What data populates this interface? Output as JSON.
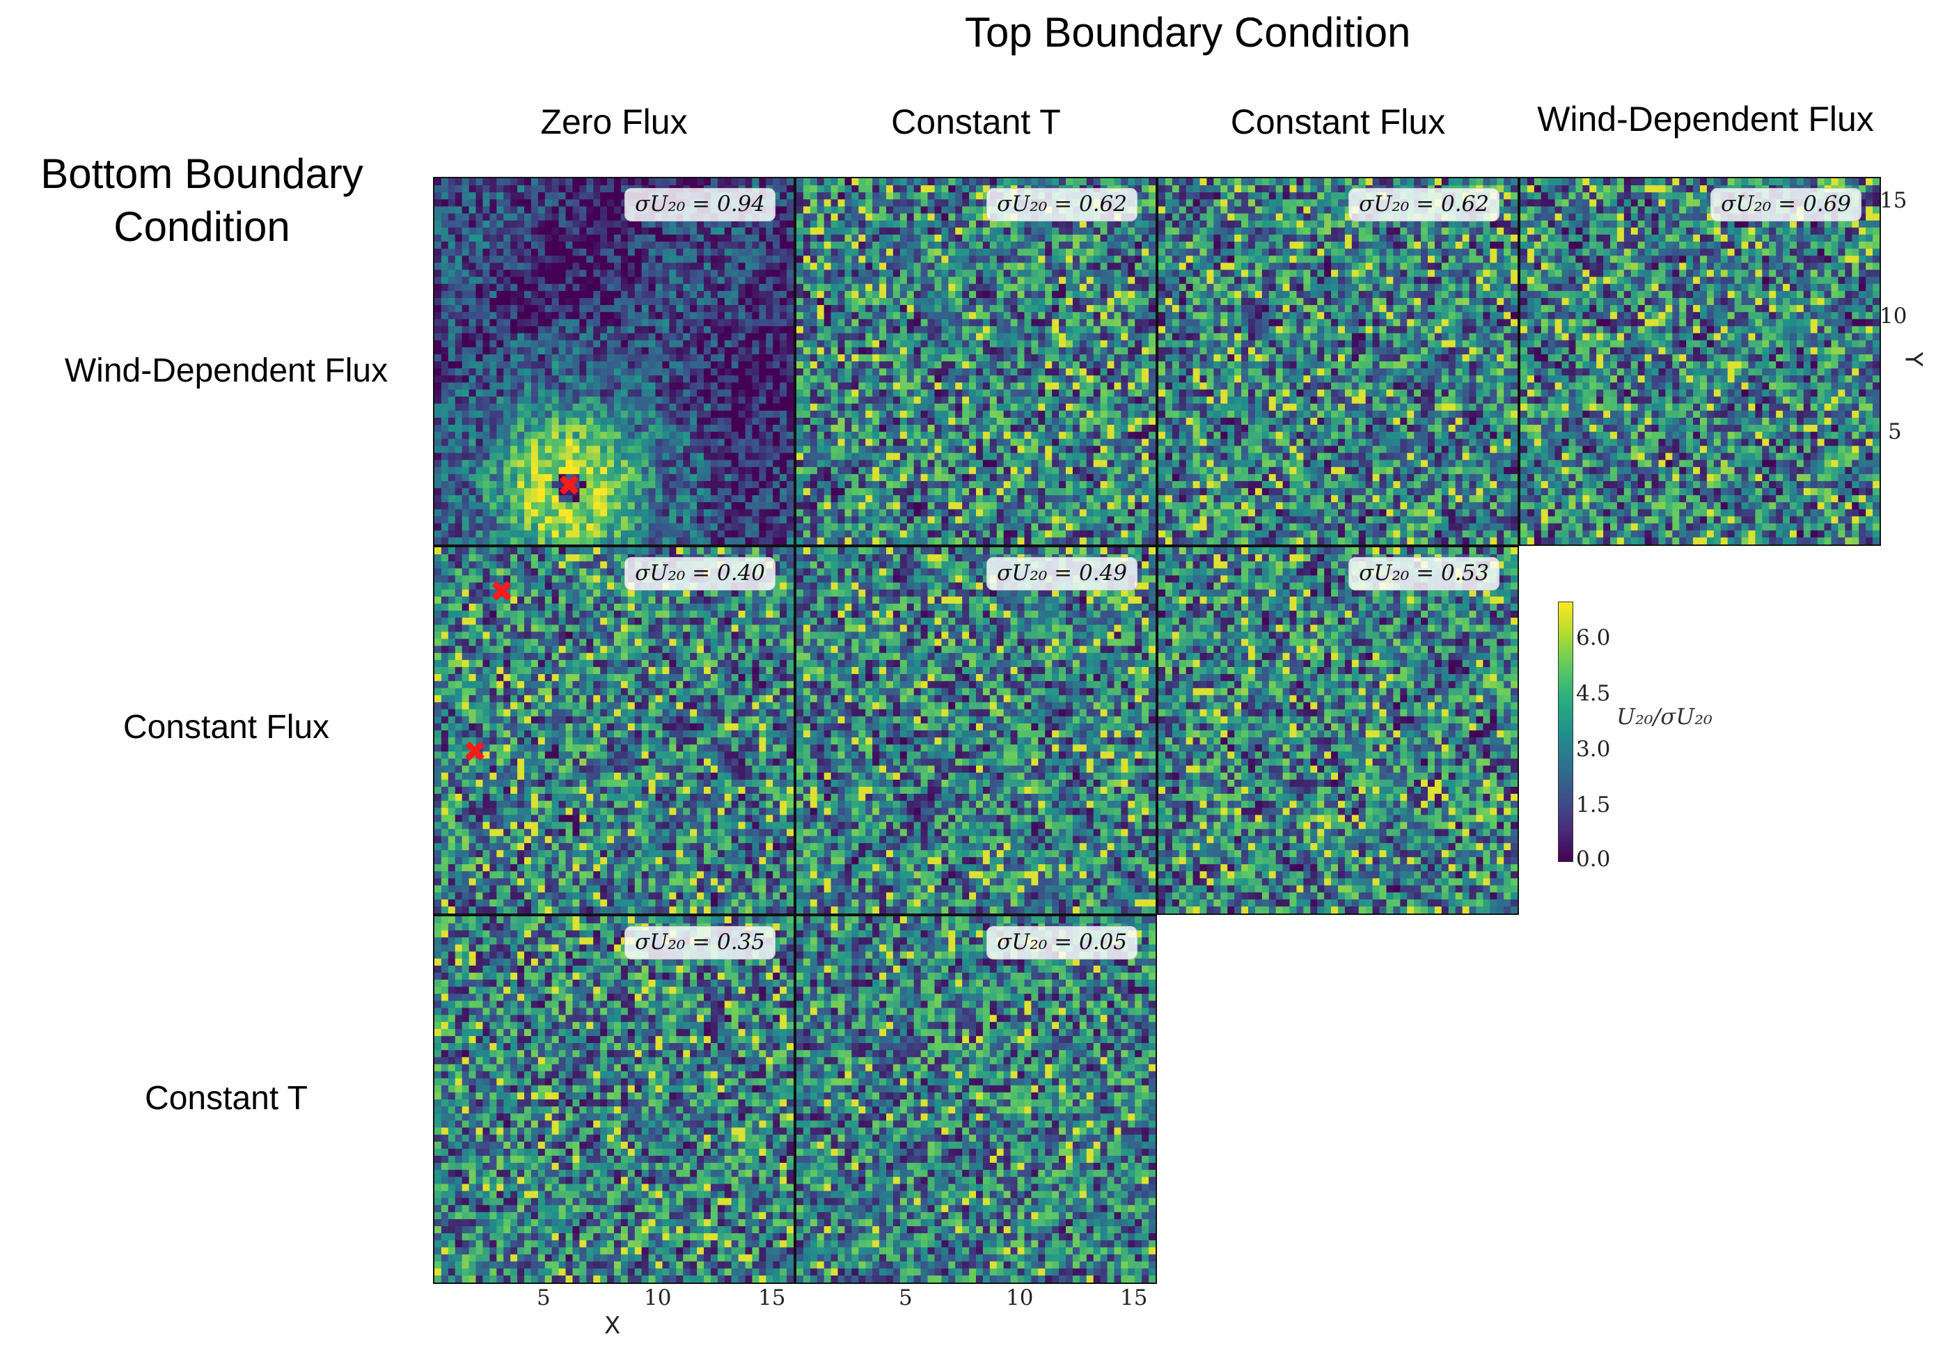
{
  "titles": {
    "top": "Top Boundary Condition",
    "bottom_line1": "Bottom Boundary",
    "bottom_line2": "Condition"
  },
  "col_headers": [
    "Zero Flux",
    "Constant T",
    "Constant Flux",
    "Wind-Dependent Flux"
  ],
  "row_headers": [
    "Wind-Dependent Flux",
    "Constant Flux",
    "Constant T"
  ],
  "chart_data": {
    "type": "heatmap",
    "panels": [
      {
        "bottom": "Wind-Dependent Flux",
        "top": "Zero Flux",
        "sigma": "0.94",
        "vortex": true,
        "crosses": [
          [
            6,
            2.5
          ]
        ]
      },
      {
        "bottom": "Wind-Dependent Flux",
        "top": "Constant T",
        "sigma": "0.62",
        "crosses": []
      },
      {
        "bottom": "Wind-Dependent Flux",
        "top": "Constant Flux",
        "sigma": "0.62",
        "crosses": []
      },
      {
        "bottom": "Wind-Dependent Flux",
        "top": "Wind-Dependent Flux",
        "sigma": "0.69",
        "crosses": []
      },
      {
        "bottom": "Constant Flux",
        "top": "Zero Flux",
        "sigma": "0.40",
        "crosses": [
          [
            3,
            14
          ],
          [
            1.8,
            7
          ]
        ]
      },
      {
        "bottom": "Constant Flux",
        "top": "Constant T",
        "sigma": "0.49",
        "crosses": []
      },
      {
        "bottom": "Constant Flux",
        "top": "Constant Flux",
        "sigma": "0.53",
        "crosses": []
      },
      {
        "bottom": "Constant T",
        "top": "Zero Flux",
        "sigma": "0.35",
        "crosses": []
      },
      {
        "bottom": "Constant T",
        "top": "Constant T",
        "sigma": "0.05",
        "crosses": []
      }
    ],
    "sigma_label": "σU₂₀ = ",
    "x_axis": {
      "label": "X",
      "ticks": [
        "5",
        "10",
        "15"
      ],
      "range": [
        0,
        16
      ]
    },
    "y_axis": {
      "label": "Y",
      "ticks": [
        "5",
        "10",
        "15"
      ],
      "range": [
        0,
        16
      ]
    },
    "colorbar": {
      "label": "U₂₀/σU₂₀",
      "ticks": [
        "0.0",
        "1.5",
        "3.0",
        "4.5",
        "6.0"
      ],
      "range": [
        0,
        7
      ],
      "colormap": [
        "#440154",
        "#3b528b",
        "#21918c",
        "#5ec962",
        "#fde725"
      ]
    }
  }
}
